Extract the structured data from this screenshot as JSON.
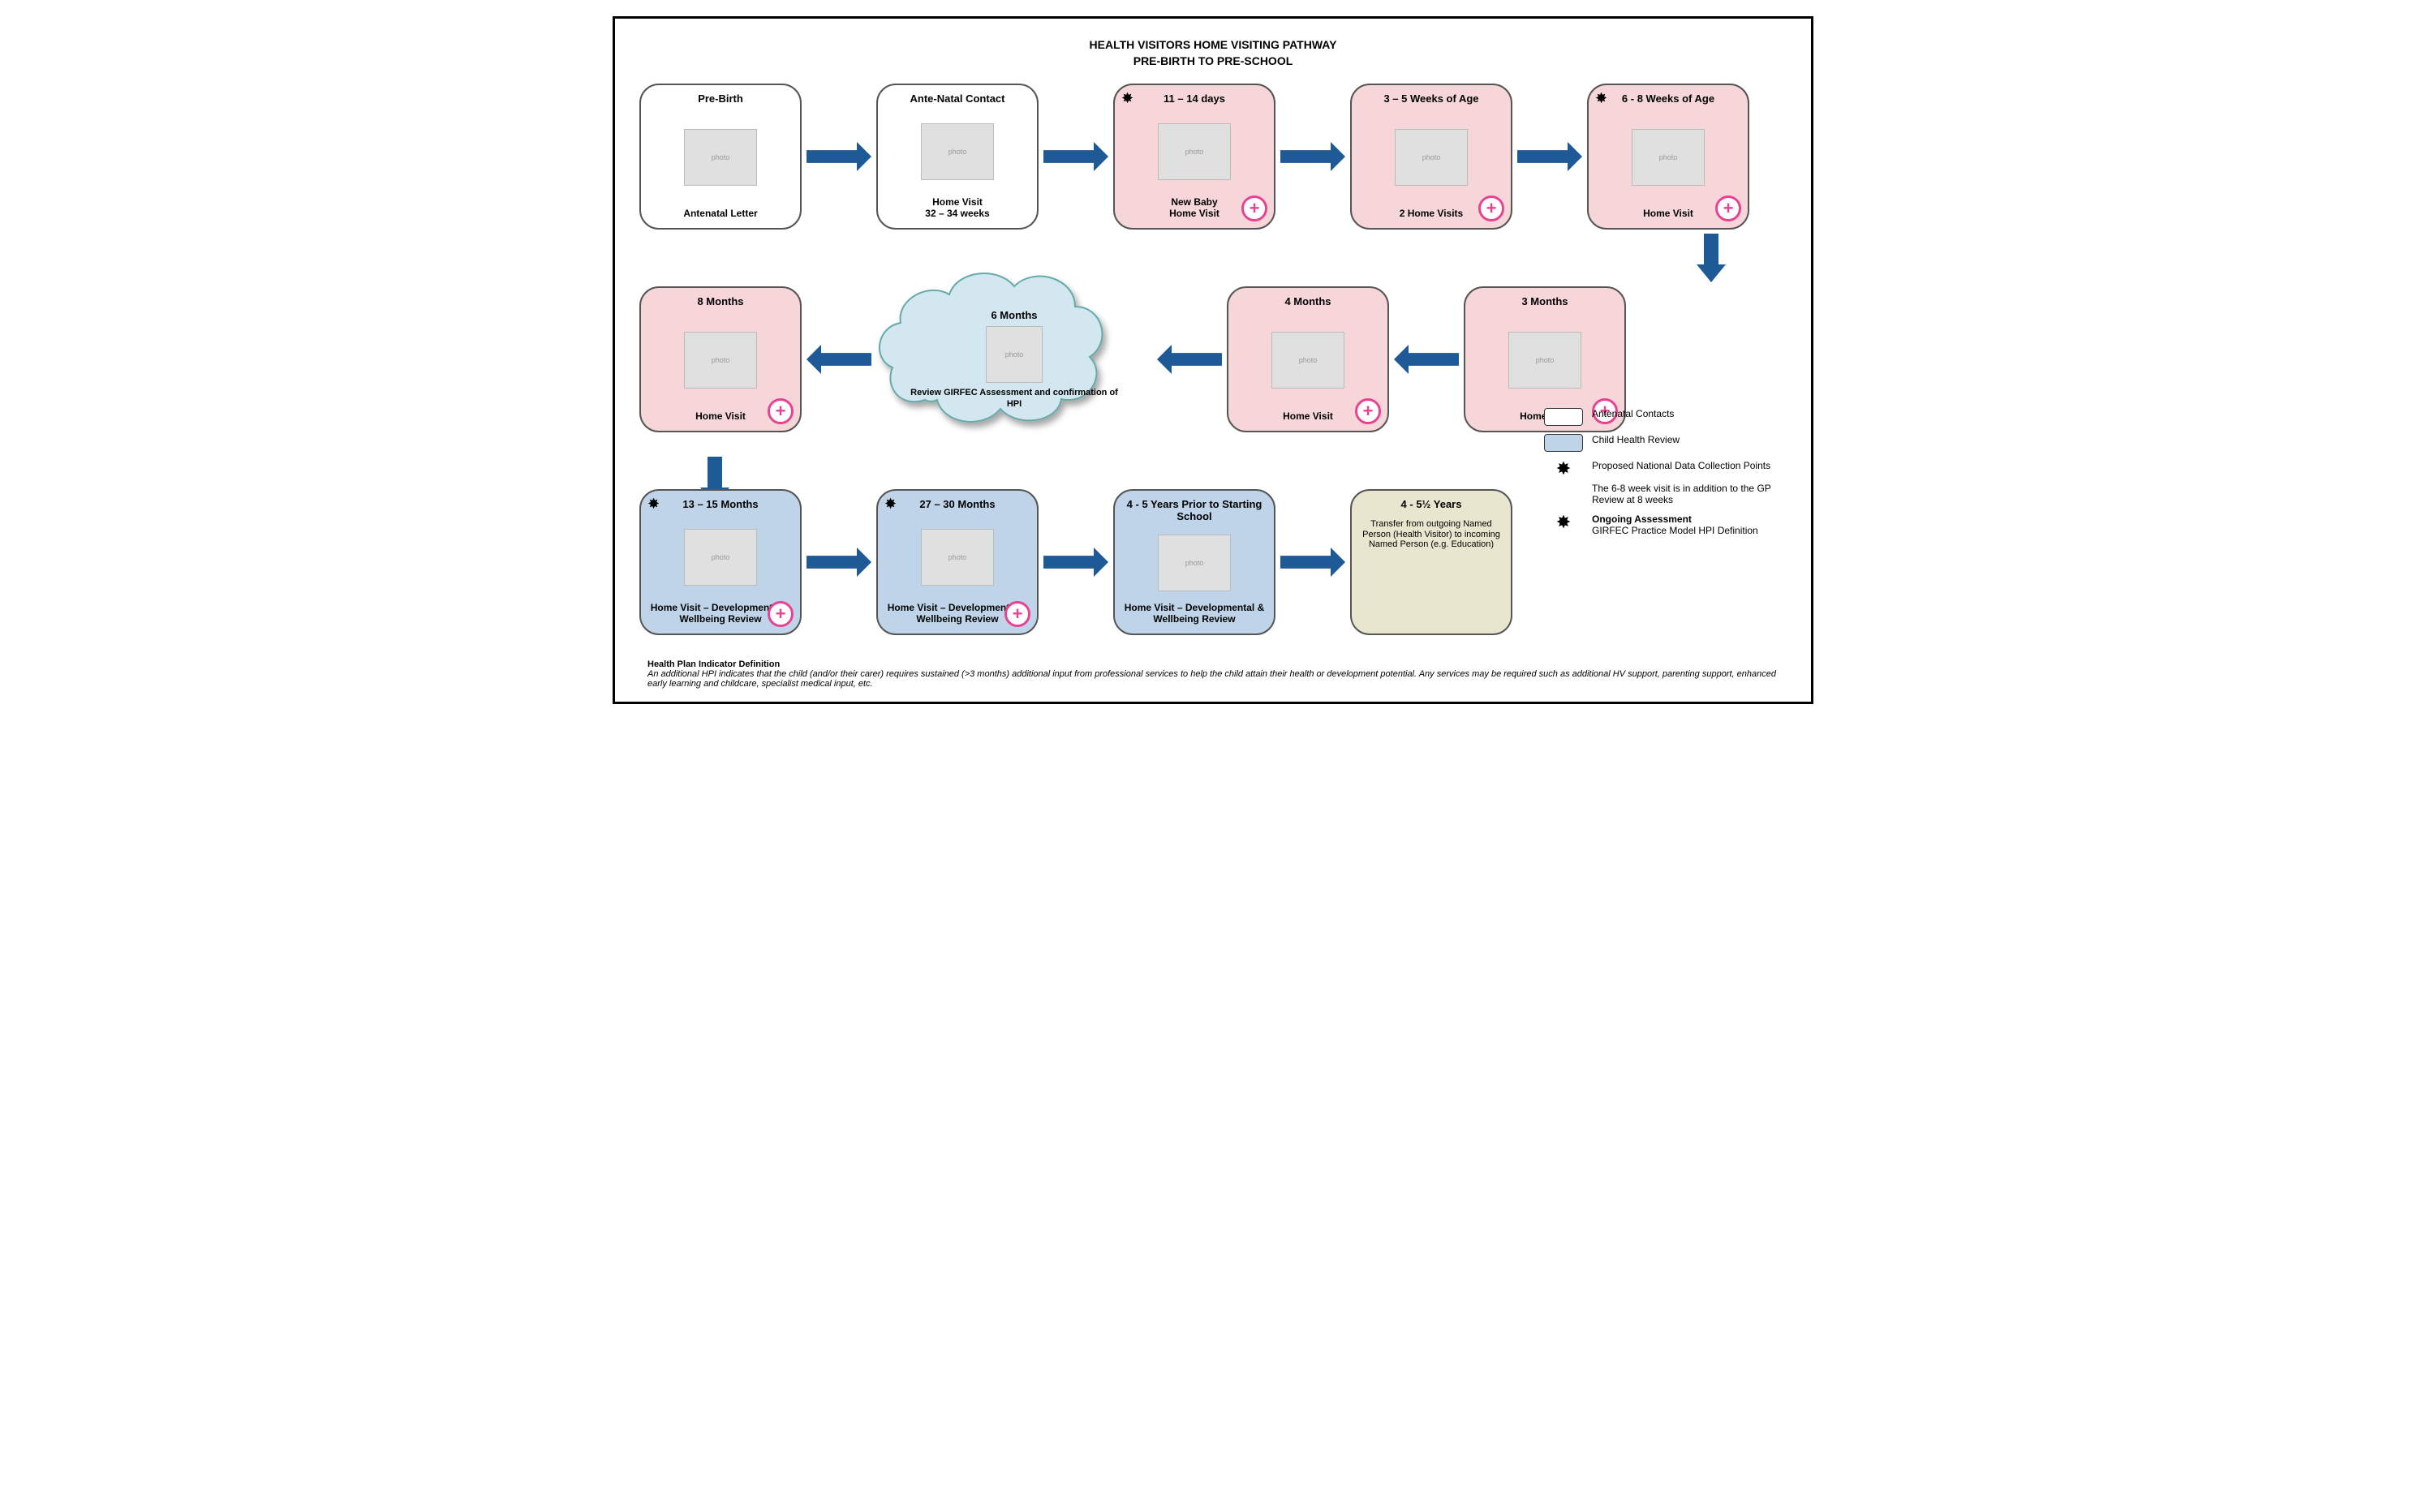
{
  "title_main": "HEALTH VISITORS HOME VISITING PATHWAY",
  "title_sub": "PRE-BIRTH TO PRE-SCHOOL",
  "colors": {
    "white": "#ffffff",
    "pink": "#f6d6d9",
    "blue": "#bfd4e8",
    "beige": "#e9e6cf",
    "cloud": "#d2e7ef",
    "arrow": "#1e5a96",
    "accent": "#e84393",
    "border": "#555555"
  },
  "row1": [
    {
      "head": "Pre-Birth",
      "foot": "Antenatal Letter",
      "bg": "white",
      "star": false,
      "plus": false
    },
    {
      "head": "Ante-Natal Contact",
      "foot": "Home Visit\n32 – 34 weeks",
      "bg": "white",
      "star": false,
      "plus": false
    },
    {
      "head": "11 – 14 days",
      "foot": "New Baby\nHome Visit",
      "bg": "pink",
      "star": true,
      "plus": true
    },
    {
      "head": "3 – 5 Weeks of Age",
      "foot": "2 Home Visits",
      "bg": "pink",
      "star": false,
      "plus": true
    },
    {
      "head": "6 - 8 Weeks of Age",
      "foot": "Home Visit",
      "bg": "pink",
      "star": true,
      "plus": true
    }
  ],
  "row2": {
    "left": {
      "head": "8 Months",
      "foot": "Home Visit",
      "bg": "pink",
      "star": false,
      "plus": true
    },
    "cloud": {
      "head": "6 Months",
      "foot": "Review GIRFEC Assessment and confirmation of HPI"
    },
    "n4": {
      "head": "4 Months",
      "foot": "Home Visit",
      "bg": "pink",
      "star": false,
      "plus": true
    },
    "n3": {
      "head": "3 Months",
      "foot": "Home Visit",
      "bg": "pink",
      "star": false,
      "plus": true
    }
  },
  "row3": [
    {
      "head": "13 – 15 Months",
      "foot": "Home Visit – Developmental & Wellbeing Review",
      "bg": "blue",
      "star": true,
      "plus": true
    },
    {
      "head": "27 – 30 Months",
      "foot": "Home Visit – Developmental & Wellbeing Review",
      "bg": "blue",
      "star": true,
      "plus": true
    },
    {
      "head": "4 - 5 Years Prior to Starting School",
      "foot": "Home Visit – Developmental & Wellbeing Review",
      "bg": "blue",
      "star": false,
      "plus": false
    },
    {
      "head": "4 - 5½ Years",
      "foot": "Transfer from outgoing Named Person (Health Visitor) to incoming Named Person (e.g. Education)",
      "bg": "beige",
      "star": false,
      "plus": false,
      "noimg": true
    }
  ],
  "legend": {
    "l1": "Antenatal Contacts",
    "l2": "Child Health Review",
    "l3": "Proposed National Data Collection Points",
    "l3b": "The 6-8 week visit is in addition to the GP Review at 8 weeks",
    "l4a": "Ongoing Assessment",
    "l4b": "GIRFEC Practice Model HPI Definition"
  },
  "footnote": {
    "head": "Health Plan Indicator Definition",
    "body": "An additional HPI indicates that the child (and/or their carer) requires sustained (>3 months) additional input from professional services to help the child attain their health or development potential.  Any services may be required such as additional HV support, parenting support, enhanced early learning and childcare, specialist medical input, etc."
  },
  "arrow": {
    "w": 80,
    "h": 36
  }
}
